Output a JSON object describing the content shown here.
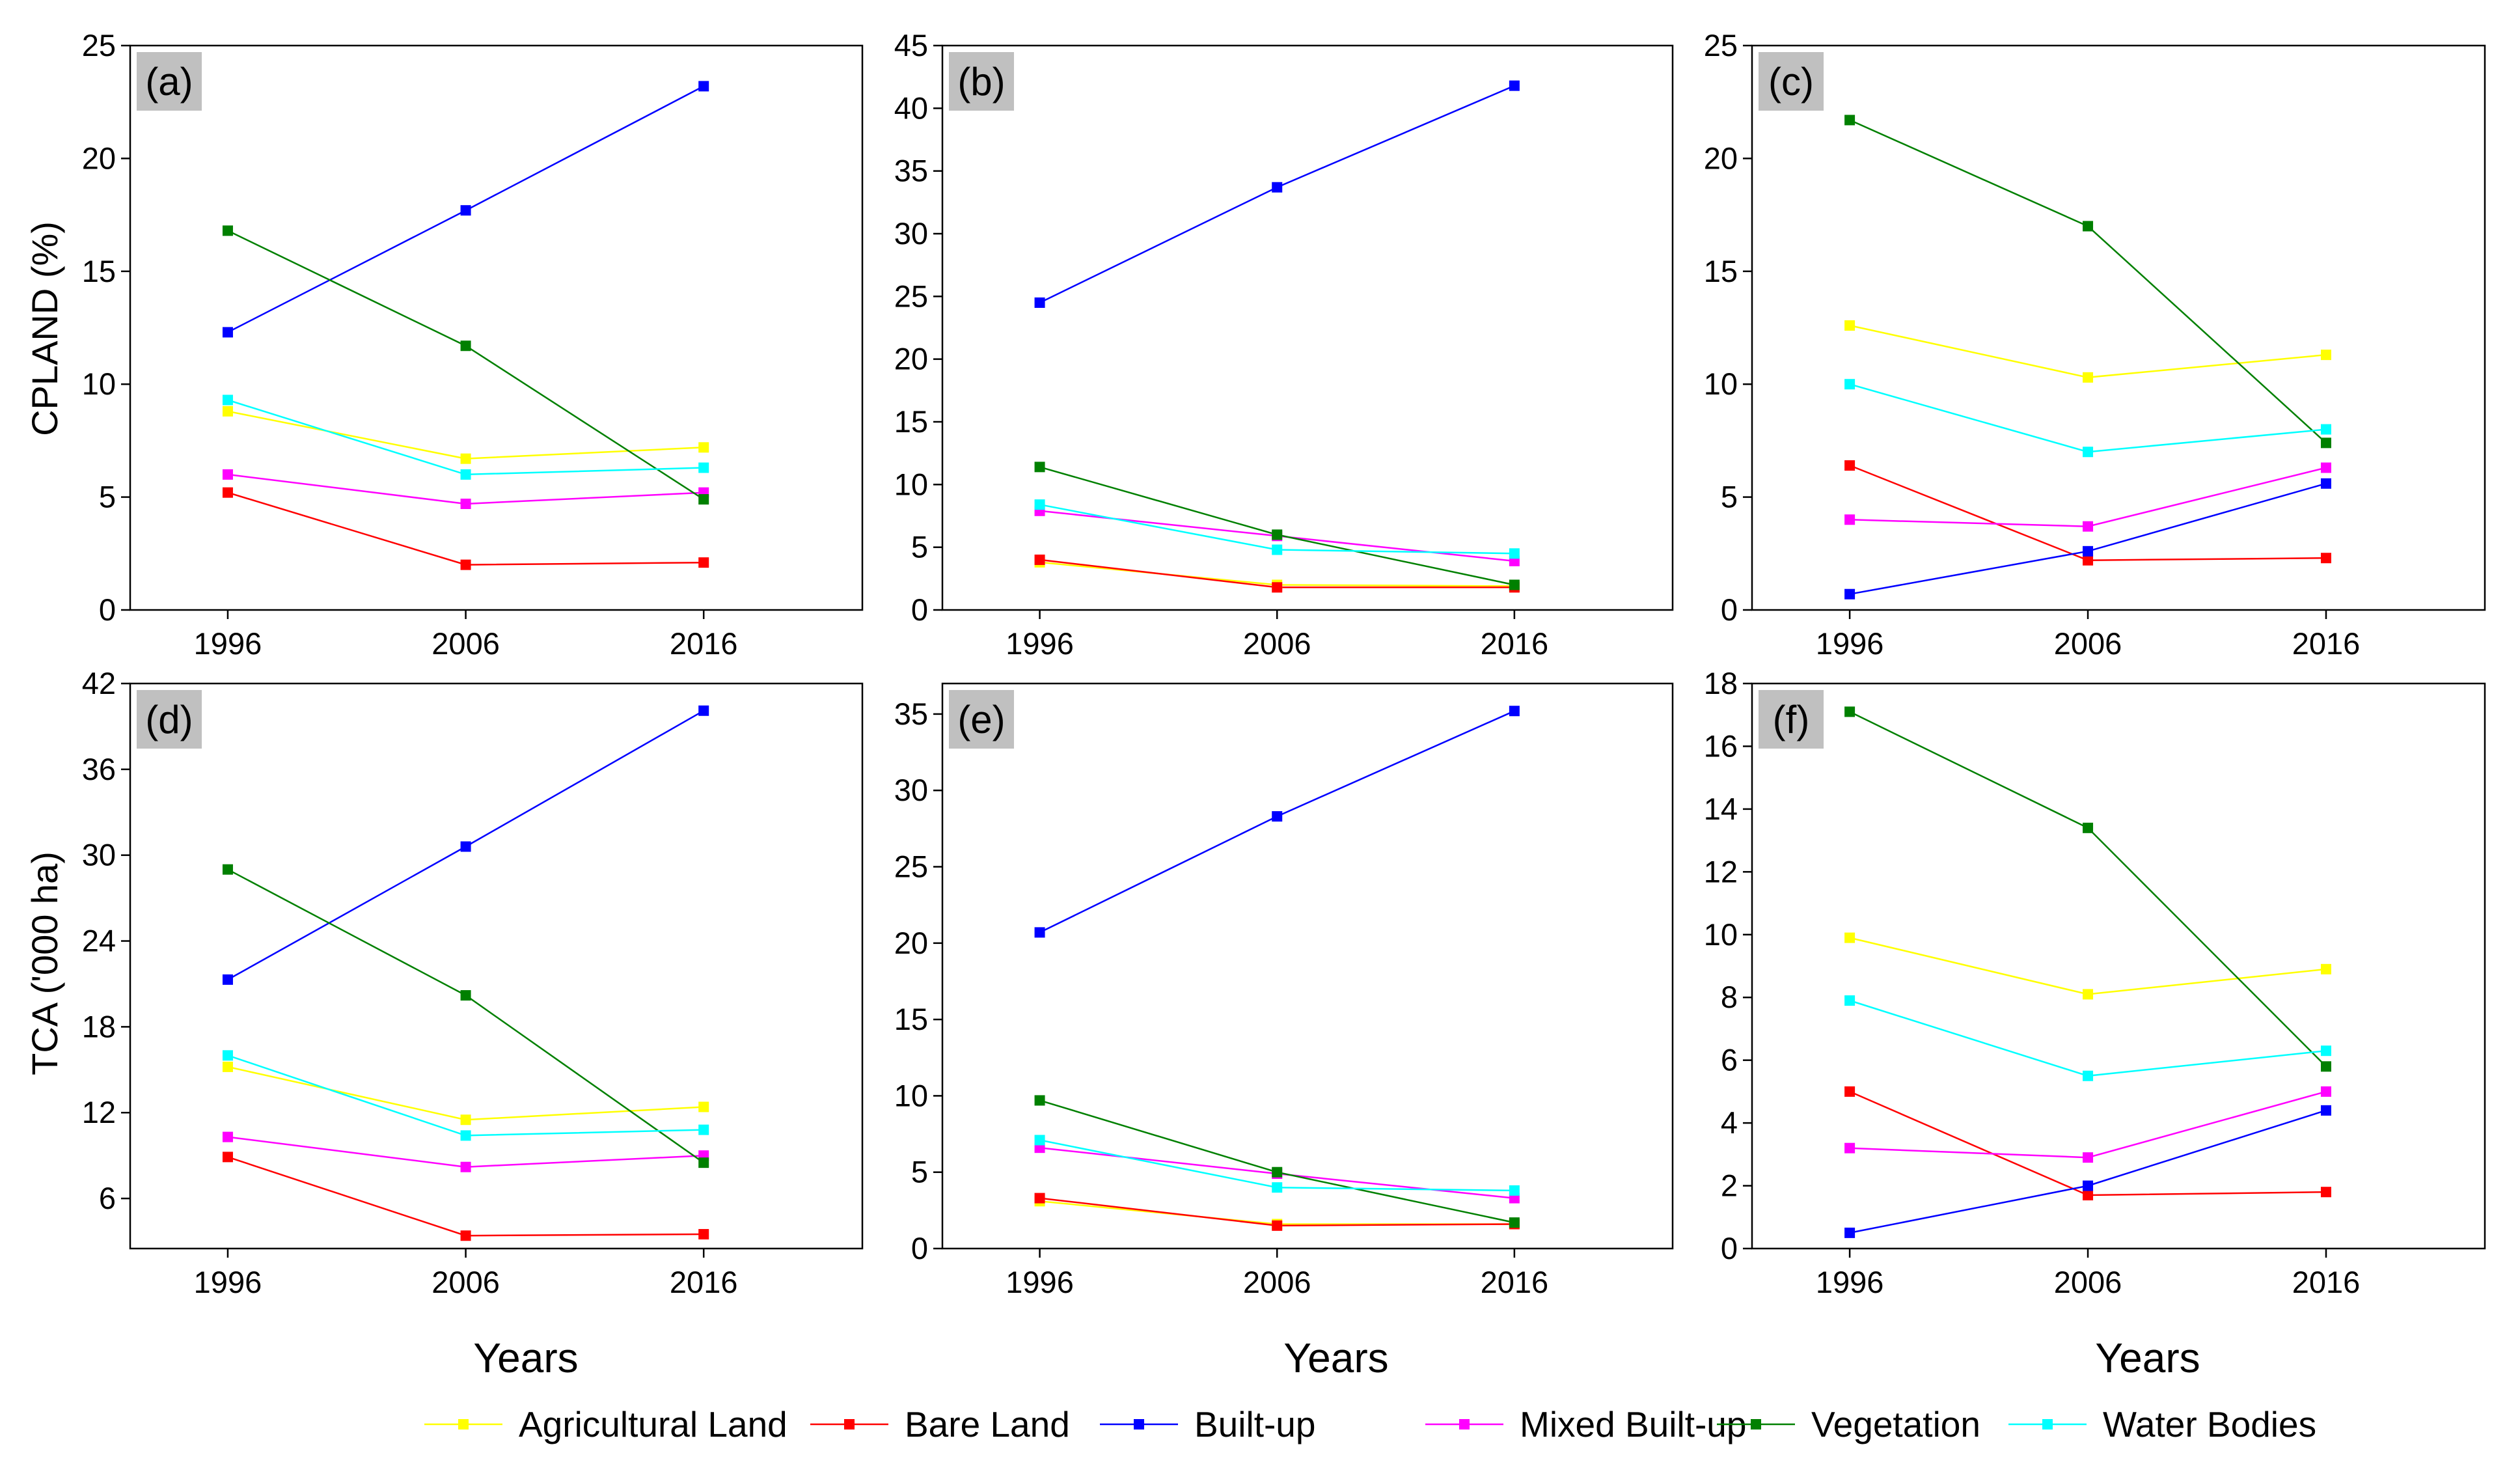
{
  "chart_data": [
    {
      "type": "line",
      "panel": "(a)",
      "ylabel": "CPLAND (%)",
      "xlabel": "",
      "categories": [
        "1996",
        "2006",
        "2016"
      ],
      "ylim": [
        0,
        25
      ],
      "yticks": [
        0,
        5,
        10,
        15,
        20,
        25
      ],
      "ytick_labels": [
        "0",
        "5",
        "10",
        "15",
        "20",
        "25"
      ],
      "series": [
        {
          "name": "Agricultural Land",
          "values": [
            8.8,
            6.7,
            7.2
          ]
        },
        {
          "name": "Bare Land",
          "values": [
            5.2,
            2.0,
            2.1
          ]
        },
        {
          "name": "Built-up",
          "values": [
            12.3,
            17.7,
            23.2
          ]
        },
        {
          "name": "Mixed Built-up",
          "values": [
            6.0,
            4.7,
            5.2
          ]
        },
        {
          "name": "Vegetation",
          "values": [
            16.8,
            11.7,
            4.9
          ]
        },
        {
          "name": "Water Bodies",
          "values": [
            9.3,
            6.0,
            6.3
          ]
        }
      ]
    },
    {
      "type": "line",
      "panel": "(b)",
      "ylabel": "",
      "xlabel": "",
      "categories": [
        "1996",
        "2006",
        "2016"
      ],
      "ylim": [
        0,
        45
      ],
      "yticks": [
        0,
        5,
        10,
        15,
        20,
        25,
        30,
        35,
        40,
        45
      ],
      "ytick_labels": [
        "0",
        "5",
        "10",
        "15",
        "20",
        "25",
        "30",
        "35",
        "40",
        "45"
      ],
      "series": [
        {
          "name": "Agricultural Land",
          "values": [
            3.8,
            2.0,
            1.9
          ]
        },
        {
          "name": "Bare Land",
          "values": [
            4.0,
            1.8,
            1.8
          ]
        },
        {
          "name": "Built-up",
          "values": [
            24.5,
            33.7,
            41.8
          ]
        },
        {
          "name": "Mixed Built-up",
          "values": [
            7.9,
            5.9,
            3.9
          ]
        },
        {
          "name": "Vegetation",
          "values": [
            11.4,
            6.0,
            2.0
          ]
        },
        {
          "name": "Water Bodies",
          "values": [
            8.4,
            4.8,
            4.5
          ]
        }
      ]
    },
    {
      "type": "line",
      "panel": "(c)",
      "ylabel": "",
      "xlabel": "",
      "categories": [
        "1996",
        "2006",
        "2016"
      ],
      "ylim": [
        0,
        25
      ],
      "yticks": [
        0,
        5,
        10,
        15,
        20,
        25
      ],
      "ytick_labels": [
        "0",
        "5",
        "10",
        "15",
        "20",
        "25"
      ],
      "series": [
        {
          "name": "Agricultural Land",
          "values": [
            12.6,
            10.3,
            11.3
          ]
        },
        {
          "name": "Bare Land",
          "values": [
            6.4,
            2.2,
            2.3
          ]
        },
        {
          "name": "Built-up",
          "values": [
            0.7,
            2.6,
            5.6
          ]
        },
        {
          "name": "Mixed Built-up",
          "values": [
            4.0,
            3.7,
            6.3
          ]
        },
        {
          "name": "Vegetation",
          "values": [
            21.7,
            17.0,
            7.4
          ]
        },
        {
          "name": "Water Bodies",
          "values": [
            10.0,
            7.0,
            8.0
          ]
        }
      ]
    },
    {
      "type": "line",
      "panel": "(d)",
      "ylabel": "TCA ('000 ha)",
      "xlabel": "Years",
      "categories": [
        "1996",
        "2006",
        "2016"
      ],
      "ylim": [
        2.5,
        42
      ],
      "yticks": [
        6,
        12,
        18,
        24,
        30,
        36,
        42
      ],
      "ytick_labels": [
        "6",
        "12",
        "18",
        "24",
        "30",
        "36",
        "42"
      ],
      "series": [
        {
          "name": "Agricultural Land",
          "values": [
            15.2,
            11.5,
            12.4
          ]
        },
        {
          "name": "Bare Land",
          "values": [
            8.9,
            3.4,
            3.5
          ]
        },
        {
          "name": "Built-up",
          "values": [
            21.3,
            30.6,
            40.1
          ]
        },
        {
          "name": "Mixed Built-up",
          "values": [
            10.3,
            8.2,
            9.0
          ]
        },
        {
          "name": "Vegetation",
          "values": [
            29.0,
            20.2,
            8.5
          ]
        },
        {
          "name": "Water Bodies",
          "values": [
            16.0,
            10.4,
            10.8
          ]
        }
      ]
    },
    {
      "type": "line",
      "panel": "(e)",
      "ylabel": "",
      "xlabel": "Years",
      "categories": [
        "1996",
        "2006",
        "2016"
      ],
      "ylim": [
        0,
        37
      ],
      "yticks": [
        0,
        5,
        10,
        15,
        20,
        25,
        30,
        35
      ],
      "ytick_labels": [
        "0",
        "5",
        "10",
        "15",
        "20",
        "25",
        "30",
        "35"
      ],
      "series": [
        {
          "name": "Agricultural Land",
          "values": [
            3.1,
            1.6,
            1.6
          ]
        },
        {
          "name": "Bare Land",
          "values": [
            3.3,
            1.5,
            1.6
          ]
        },
        {
          "name": "Built-up",
          "values": [
            20.7,
            28.3,
            35.2
          ]
        },
        {
          "name": "Mixed Built-up",
          "values": [
            6.6,
            4.9,
            3.3
          ]
        },
        {
          "name": "Vegetation",
          "values": [
            9.7,
            5.0,
            1.7
          ]
        },
        {
          "name": "Water Bodies",
          "values": [
            7.1,
            4.0,
            3.8
          ]
        }
      ]
    },
    {
      "type": "line",
      "panel": "(f)",
      "ylabel": "",
      "xlabel": "Years",
      "categories": [
        "1996",
        "2006",
        "2016"
      ],
      "ylim": [
        0,
        18
      ],
      "yticks": [
        0,
        2,
        4,
        6,
        8,
        10,
        12,
        14,
        16,
        18
      ],
      "ytick_labels": [
        "0",
        "2",
        "4",
        "6",
        "8",
        "10",
        "12",
        "14",
        "16",
        "18"
      ],
      "series": [
        {
          "name": "Agricultural Land",
          "values": [
            9.9,
            8.1,
            8.9
          ]
        },
        {
          "name": "Bare Land",
          "values": [
            5.0,
            1.7,
            1.8
          ]
        },
        {
          "name": "Built-up",
          "values": [
            0.5,
            2.0,
            4.4
          ]
        },
        {
          "name": "Mixed Built-up",
          "values": [
            3.2,
            2.9,
            5.0
          ]
        },
        {
          "name": "Vegetation",
          "values": [
            17.1,
            13.4,
            5.8
          ]
        },
        {
          "name": "Water Bodies",
          "values": [
            7.9,
            5.5,
            6.3
          ]
        }
      ]
    }
  ],
  "legend": [
    {
      "name": "Agricultural Land",
      "color": "#ffff00"
    },
    {
      "name": "Bare Land",
      "color": "#ff0000"
    },
    {
      "name": "Built-up",
      "color": "#0000ff"
    },
    {
      "name": "Mixed Built-up",
      "color": "#ff00ff"
    },
    {
      "name": "Vegetation",
      "color": "#008000"
    },
    {
      "name": "Water Bodies",
      "color": "#00ffff"
    }
  ]
}
